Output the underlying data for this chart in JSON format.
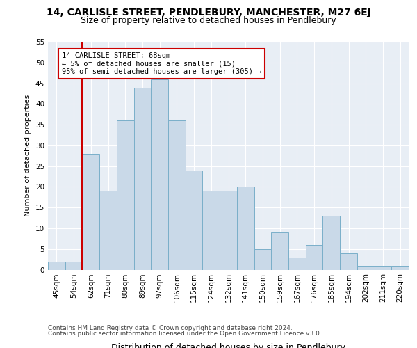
{
  "title_line1": "14, CARLISLE STREET, PENDLEBURY, MANCHESTER, M27 6EJ",
  "title_line2": "Size of property relative to detached houses in Pendlebury",
  "xlabel": "Distribution of detached houses by size in Pendlebury",
  "ylabel": "Number of detached properties",
  "bar_labels": [
    "45sqm",
    "54sqm",
    "62sqm",
    "71sqm",
    "80sqm",
    "89sqm",
    "97sqm",
    "106sqm",
    "115sqm",
    "124sqm",
    "132sqm",
    "141sqm",
    "150sqm",
    "159sqm",
    "167sqm",
    "176sqm",
    "185sqm",
    "194sqm",
    "202sqm",
    "211sqm",
    "220sqm"
  ],
  "bar_heights": [
    2,
    2,
    28,
    19,
    36,
    44,
    46,
    36,
    24,
    19,
    19,
    20,
    5,
    9,
    3,
    6,
    13,
    4,
    1,
    1,
    1
  ],
  "bar_color": "#c9d9e8",
  "bar_edge_color": "#7aafc9",
  "vline_x_idx": 2,
  "vline_color": "#cc0000",
  "annotation_text": "14 CARLISLE STREET: 68sqm\n← 5% of detached houses are smaller (15)\n95% of semi-detached houses are larger (305) →",
  "annotation_box_color": "#ffffff",
  "annotation_box_edge_color": "#cc0000",
  "ylim": [
    0,
    55
  ],
  "yticks": [
    0,
    5,
    10,
    15,
    20,
    25,
    30,
    35,
    40,
    45,
    50,
    55
  ],
  "plot_bg_color": "#e8eef5",
  "grid_color": "#ffffff",
  "footer_line1": "Contains HM Land Registry data © Crown copyright and database right 2024.",
  "footer_line2": "Contains public sector information licensed under the Open Government Licence v3.0.",
  "title_fontsize": 10,
  "subtitle_fontsize": 9,
  "xlabel_fontsize": 9,
  "ylabel_fontsize": 8,
  "tick_fontsize": 7.5,
  "annot_fontsize": 7.5,
  "footer_fontsize": 6.5
}
